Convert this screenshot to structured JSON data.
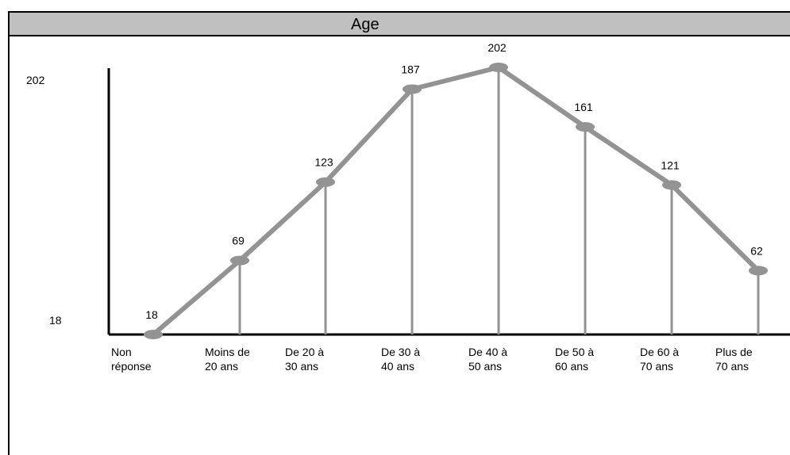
{
  "chart_data": {
    "type": "line",
    "title": "Age",
    "xlabel": "",
    "ylabel": "",
    "ylim": [
      18,
      202
    ],
    "yticks": [
      "202",
      "18"
    ],
    "categories": [
      [
        "Non",
        "réponse"
      ],
      [
        "Moins de",
        "20 ans"
      ],
      [
        "De 20 à",
        "30 ans"
      ],
      [
        "De 30 à",
        "40 ans"
      ],
      [
        "De 40 à",
        "50 ans"
      ],
      [
        "De 50 à",
        "60 ans"
      ],
      [
        "De 60 à",
        "70 ans"
      ],
      [
        "Plus de",
        "70 ans"
      ]
    ],
    "values": [
      18,
      69,
      123,
      187,
      202,
      161,
      121,
      62
    ],
    "data_labels": [
      "18",
      "69",
      "123",
      "187",
      "202",
      "161",
      "121",
      "62"
    ],
    "colors": {
      "line": "#939393",
      "axis": "#000000",
      "title_bar": "#c0c0c0"
    },
    "grid": false,
    "drop_lines": true
  }
}
